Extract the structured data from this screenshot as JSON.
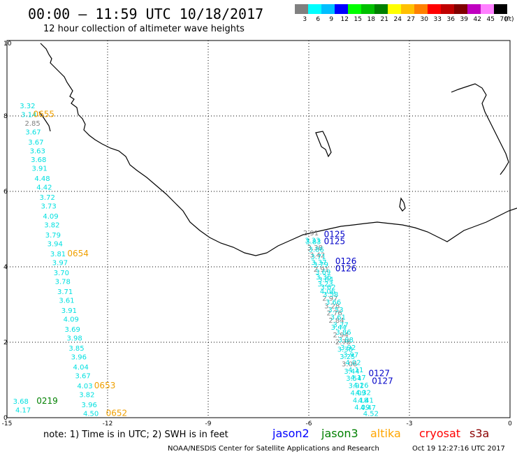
{
  "header": {
    "title": "00:00 – 11:59 UTC 10/18/2017",
    "subtitle": "12 hour collection of altimeter wave heights"
  },
  "legend": {
    "labels": [
      "3",
      "6",
      "9",
      "12",
      "15",
      "18",
      "21",
      "24",
      "27",
      "30",
      "33",
      "36",
      "39",
      "42",
      "45",
      "70"
    ],
    "unit": "(ft)",
    "colors": [
      "#808080",
      "#00ffff",
      "#00bfff",
      "#0000ff",
      "#00ff00",
      "#00c000",
      "#008000",
      "#ffff00",
      "#ffc000",
      "#ff8000",
      "#ff0000",
      "#c00000",
      "#800000",
      "#c000c0",
      "#ff80ff",
      "#000000"
    ]
  },
  "axes": {
    "x_ticks": [
      "-15",
      "-12",
      "-9",
      "-6",
      "-3",
      "0"
    ],
    "y_ticks": [
      "0",
      "2",
      "4",
      "6",
      "8",
      "10"
    ]
  },
  "tracks": [
    {
      "name": "track-left",
      "items": [
        {
          "v": "3.32",
          "lon": -14.62,
          "lat": 8.2,
          "c": "cyan"
        },
        {
          "v": "3.14",
          "lon": -14.58,
          "lat": 7.97,
          "c": "cyan"
        },
        {
          "v": "2.85",
          "lon": -14.47,
          "lat": 7.74,
          "c": "gray"
        },
        {
          "v": "3.67",
          "lon": -14.45,
          "lat": 7.51,
          "c": "cyan"
        },
        {
          "v": "3.67",
          "lon": -14.37,
          "lat": 7.24,
          "c": "cyan"
        },
        {
          "v": "3.63",
          "lon": -14.32,
          "lat": 7.01,
          "c": "cyan"
        },
        {
          "v": "3.68",
          "lon": -14.29,
          "lat": 6.78,
          "c": "cyan"
        },
        {
          "v": "3.91",
          "lon": -14.26,
          "lat": 6.55,
          "c": "cyan"
        },
        {
          "v": "4.48",
          "lon": -14.18,
          "lat": 6.28,
          "c": "cyan"
        },
        {
          "v": "4.42",
          "lon": -14.12,
          "lat": 6.05,
          "c": "cyan"
        },
        {
          "v": "3.72",
          "lon": -14.03,
          "lat": 5.78,
          "c": "cyan"
        },
        {
          "v": "3.73",
          "lon": -13.99,
          "lat": 5.55,
          "c": "cyan"
        },
        {
          "v": "4.09",
          "lon": -13.93,
          "lat": 5.28,
          "c": "cyan"
        },
        {
          "v": "3.82",
          "lon": -13.89,
          "lat": 5.05,
          "c": "cyan"
        },
        {
          "v": "3.79",
          "lon": -13.86,
          "lat": 4.78,
          "c": "cyan"
        },
        {
          "v": "3.94",
          "lon": -13.8,
          "lat": 4.55,
          "c": "cyan"
        },
        {
          "v": "3.81",
          "lon": -13.71,
          "lat": 4.28,
          "c": "cyan"
        },
        {
          "v": "3.97",
          "lon": -13.65,
          "lat": 4.05,
          "c": "cyan"
        },
        {
          "v": "3.70",
          "lon": -13.61,
          "lat": 3.78,
          "c": "cyan"
        },
        {
          "v": "3.78",
          "lon": -13.57,
          "lat": 3.55,
          "c": "cyan"
        },
        {
          "v": "3.71",
          "lon": -13.5,
          "lat": 3.28,
          "c": "cyan"
        },
        {
          "v": "3.61",
          "lon": -13.45,
          "lat": 3.05,
          "c": "cyan"
        },
        {
          "v": "3.91",
          "lon": -13.38,
          "lat": 2.78,
          "c": "cyan"
        },
        {
          "v": "4.09",
          "lon": -13.32,
          "lat": 2.55,
          "c": "cyan"
        },
        {
          "v": "3.69",
          "lon": -13.28,
          "lat": 2.28,
          "c": "cyan"
        },
        {
          "v": "3.98",
          "lon": -13.22,
          "lat": 2.05,
          "c": "cyan"
        },
        {
          "v": "3.85",
          "lon": -13.16,
          "lat": 1.78,
          "c": "cyan"
        },
        {
          "v": "3.96",
          "lon": -13.09,
          "lat": 1.55,
          "c": "cyan"
        },
        {
          "v": "4.04",
          "lon": -13.03,
          "lat": 1.28,
          "c": "cyan"
        },
        {
          "v": "3.67",
          "lon": -12.97,
          "lat": 1.05,
          "c": "cyan"
        },
        {
          "v": "4.03",
          "lon": -12.91,
          "lat": 0.78,
          "c": "cyan"
        },
        {
          "v": "3.82",
          "lon": -12.85,
          "lat": 0.55,
          "c": "cyan"
        },
        {
          "v": "3.96",
          "lon": -12.78,
          "lat": 0.28,
          "c": "cyan"
        },
        {
          "v": "4.50",
          "lon": -12.73,
          "lat": 0.05,
          "c": "cyan"
        },
        {
          "v": "3.68",
          "lon": -14.82,
          "lat": 0.37,
          "c": "cyan"
        },
        {
          "v": "4.17",
          "lon": -14.75,
          "lat": 0.14,
          "c": "cyan"
        }
      ]
    },
    {
      "name": "track-right-a",
      "items": [
        {
          "v": "2.91",
          "lon": -6.17,
          "lat": 4.83,
          "c": "gray"
        },
        {
          "v": "3.33",
          "lon": -6.12,
          "lat": 4.64,
          "c": "cyan"
        },
        {
          "v": "3.38",
          "lon": -6.05,
          "lat": 4.44,
          "c": "gray"
        },
        {
          "v": "3.42",
          "lon": -5.98,
          "lat": 4.25,
          "c": "gray"
        },
        {
          "v": "3.37",
          "lon": -5.93,
          "lat": 4.06,
          "c": "cyan"
        },
        {
          "v": "2.91",
          "lon": -5.86,
          "lat": 3.87,
          "c": "gray"
        },
        {
          "v": "3.36",
          "lon": -5.79,
          "lat": 3.67,
          "c": "cyan"
        },
        {
          "v": "3.23",
          "lon": -5.74,
          "lat": 3.48,
          "c": "cyan"
        },
        {
          "v": "4.06",
          "lon": -5.67,
          "lat": 3.29,
          "c": "cyan"
        },
        {
          "v": "2.97",
          "lon": -5.6,
          "lat": 3.1,
          "c": "gray"
        },
        {
          "v": "3.28",
          "lon": -5.54,
          "lat": 2.9,
          "c": "gray"
        },
        {
          "v": "2.76",
          "lon": -5.47,
          "lat": 2.71,
          "c": "gray"
        },
        {
          "v": "2.84",
          "lon": -5.41,
          "lat": 2.52,
          "c": "gray"
        },
        {
          "v": "3.44",
          "lon": -5.34,
          "lat": 2.33,
          "c": "cyan"
        },
        {
          "v": "2.94",
          "lon": -5.28,
          "lat": 2.13,
          "c": "gray"
        },
        {
          "v": "2.78",
          "lon": -5.21,
          "lat": 1.94,
          "c": "gray"
        },
        {
          "v": "3.38",
          "lon": -5.15,
          "lat": 1.75,
          "c": "cyan"
        },
        {
          "v": "3.25",
          "lon": -5.08,
          "lat": 1.56,
          "c": "cyan"
        },
        {
          "v": "3.06",
          "lon": -5.02,
          "lat": 1.36,
          "c": "gray"
        },
        {
          "v": "3.44",
          "lon": -4.95,
          "lat": 1.17,
          "c": "cyan"
        },
        {
          "v": "3.54",
          "lon": -4.89,
          "lat": 0.98,
          "c": "cyan"
        },
        {
          "v": "3.91",
          "lon": -4.82,
          "lat": 0.79,
          "c": "cyan"
        },
        {
          "v": "4.09",
          "lon": -4.76,
          "lat": 0.59,
          "c": "cyan"
        },
        {
          "v": "4.18",
          "lon": -4.69,
          "lat": 0.4,
          "c": "cyan"
        },
        {
          "v": "4.09",
          "lon": -4.64,
          "lat": 0.21,
          "c": "cyan"
        }
      ]
    },
    {
      "name": "track-right-b",
      "items": [
        {
          "v": "3.83",
          "lon": -6.1,
          "lat": 4.6,
          "c": "cyan"
        },
        {
          "v": "3.86",
          "lon": -6.01,
          "lat": 4.4,
          "c": "cyan"
        },
        {
          "v": "3.71",
          "lon": -5.95,
          "lat": 4.2,
          "c": "cyan"
        },
        {
          "v": "3.79",
          "lon": -5.88,
          "lat": 4.0,
          "c": "cyan"
        },
        {
          "v": "3.69",
          "lon": -5.81,
          "lat": 3.8,
          "c": "cyan"
        },
        {
          "v": "3.64",
          "lon": -5.73,
          "lat": 3.6,
          "c": "cyan"
        },
        {
          "v": "3.62",
          "lon": -5.66,
          "lat": 3.4,
          "c": "cyan"
        },
        {
          "v": "3.58",
          "lon": -5.58,
          "lat": 3.2,
          "c": "cyan"
        },
        {
          "v": "3.66",
          "lon": -5.5,
          "lat": 3.0,
          "c": "cyan"
        },
        {
          "v": "3.53",
          "lon": -5.43,
          "lat": 2.8,
          "c": "cyan"
        },
        {
          "v": "3.61",
          "lon": -5.36,
          "lat": 2.6,
          "c": "cyan"
        },
        {
          "v": "3.77",
          "lon": -5.28,
          "lat": 2.4,
          "c": "cyan"
        },
        {
          "v": "3.86",
          "lon": -5.2,
          "lat": 2.2,
          "c": "cyan"
        },
        {
          "v": "3.88",
          "lon": -5.13,
          "lat": 2.0,
          "c": "cyan"
        },
        {
          "v": "3.92",
          "lon": -5.06,
          "lat": 1.8,
          "c": "cyan"
        },
        {
          "v": "3.97",
          "lon": -4.98,
          "lat": 1.6,
          "c": "cyan"
        },
        {
          "v": "4.02",
          "lon": -4.91,
          "lat": 1.4,
          "c": "cyan"
        },
        {
          "v": "4.11",
          "lon": -4.83,
          "lat": 1.2,
          "c": "cyan"
        },
        {
          "v": "4.17",
          "lon": -4.76,
          "lat": 1.0,
          "c": "cyan"
        },
        {
          "v": "4.26",
          "lon": -4.68,
          "lat": 0.8,
          "c": "cyan"
        },
        {
          "v": "4.32",
          "lon": -4.61,
          "lat": 0.6,
          "c": "cyan"
        },
        {
          "v": "4.41",
          "lon": -4.53,
          "lat": 0.4,
          "c": "cyan"
        },
        {
          "v": "4.47",
          "lon": -4.46,
          "lat": 0.2,
          "c": "cyan"
        },
        {
          "v": "4.52",
          "lon": -4.38,
          "lat": 0.05,
          "c": "cyan"
        }
      ]
    }
  ],
  "time_labels": [
    {
      "t": "0655",
      "lon": -14.22,
      "lat": 7.97,
      "c": "orange"
    },
    {
      "t": "0654",
      "lon": -13.2,
      "lat": 4.28,
      "c": "orange"
    },
    {
      "t": "0653",
      "lon": -12.4,
      "lat": 0.78,
      "c": "orange"
    },
    {
      "t": "0652",
      "lon": -12.05,
      "lat": 0.05,
      "c": "orange"
    },
    {
      "t": "0219",
      "lon": -14.12,
      "lat": 0.37,
      "c": "darkgreen"
    },
    {
      "t": "0125",
      "lon": -5.55,
      "lat": 4.79,
      "c": "blue"
    },
    {
      "t": "0125",
      "lon": -5.55,
      "lat": 4.6,
      "c": "blue"
    },
    {
      "t": "0126",
      "lon": -5.21,
      "lat": 4.07,
      "c": "blue"
    },
    {
      "t": "0126",
      "lon": -5.21,
      "lat": 3.88,
      "c": "blue"
    },
    {
      "t": "0127",
      "lon": -4.22,
      "lat": 1.1,
      "c": "blue"
    },
    {
      "t": "0127",
      "lon": -4.12,
      "lat": 0.9,
      "c": "blue"
    }
  ],
  "coast_labels": [],
  "footer": {
    "note": "note:  1) Time is in UTC;  2) SWH is in feet",
    "missions": [
      {
        "name": "jason2",
        "color": "#0000ff"
      },
      {
        "name": "jason3",
        "color": "#008000"
      },
      {
        "name": "altika",
        "color": "#ffa500"
      },
      {
        "name": "cryosat",
        "color": "#ff0000"
      },
      {
        "name": "s3a",
        "color": "#8b0000"
      }
    ],
    "credit": "NOAA/NESDIS Center for Satellite Applications and Research",
    "timestamp": "Oct 19 12:27:16 UTC 2017"
  },
  "palette": {
    "cyan": "#00e0e0",
    "gray": "#808080",
    "orange": "#f0a000",
    "darkgreen": "#008000",
    "blue": "#0000c8",
    "coast": "#000000",
    "grid": "#000000"
  },
  "map": {
    "lon_range": [
      -15,
      0
    ],
    "lat_range": [
      0,
      10
    ]
  }
}
